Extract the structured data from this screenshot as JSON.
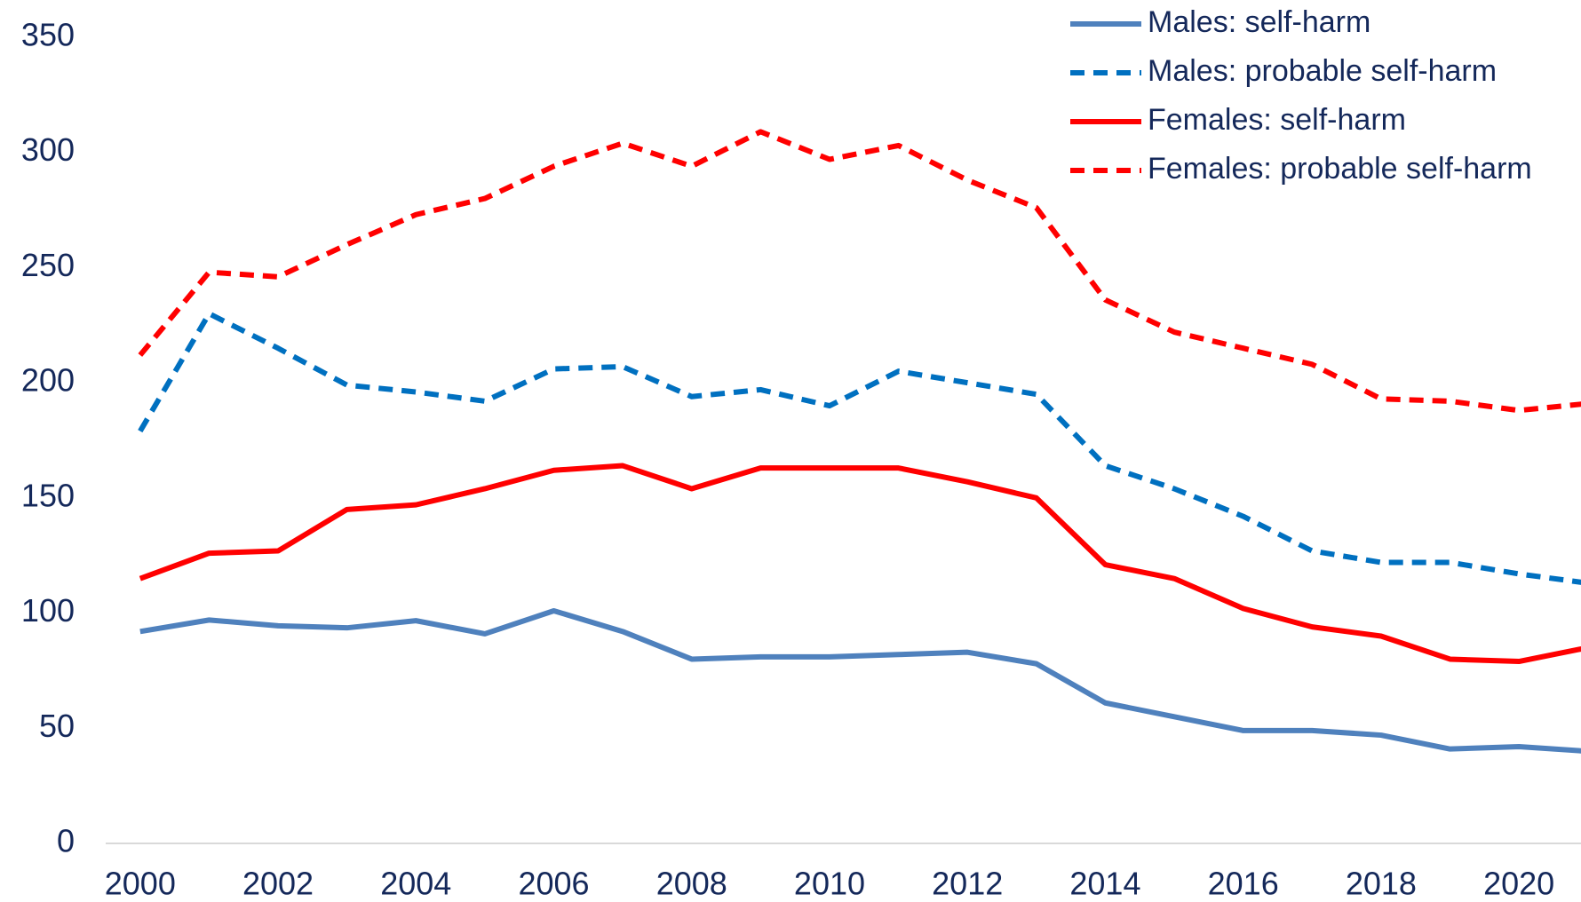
{
  "chart_data": {
    "type": "line",
    "x": [
      2000,
      2001,
      2002,
      2003,
      2004,
      2005,
      2006,
      2007,
      2008,
      2009,
      2010,
      2011,
      2012,
      2013,
      2014,
      2015,
      2016,
      2017,
      2018,
      2019,
      2020,
      2021
    ],
    "series": [
      {
        "name": "Males: self-harm",
        "color": "#4f81bd",
        "dashed": false,
        "values": [
          92,
          97,
          94.5,
          93.6,
          96.7,
          91,
          101,
          92,
          80,
          81,
          81,
          82,
          83,
          78,
          61,
          55,
          49,
          49,
          47,
          41,
          42,
          40
        ]
      },
      {
        "name": "Males: probable self-harm",
        "color": "#0070c0",
        "dashed": true,
        "values": [
          179,
          230,
          215,
          199,
          196,
          192,
          206,
          207,
          194,
          197,
          190,
          205,
          200,
          195,
          164,
          154,
          142,
          127,
          122,
          122,
          117,
          113
        ]
      },
      {
        "name": "Females: self-harm",
        "color": "#ff0000",
        "dashed": false,
        "values": [
          115,
          126,
          127,
          145,
          147,
          154,
          162,
          164,
          154,
          163,
          163,
          163,
          157,
          150,
          121,
          115,
          102,
          94,
          90,
          80,
          79,
          85
        ]
      },
      {
        "name": "Females: probable self-harm",
        "color": "#ff0000",
        "dashed": true,
        "values": [
          212,
          248,
          246,
          260,
          273,
          280,
          294,
          304,
          294,
          309,
          297,
          303,
          288,
          276,
          236,
          222,
          215,
          208,
          193,
          192,
          188,
          191
        ]
      }
    ],
    "xlim": [
      1999.5,
      2020.9
    ],
    "xticks": [
      2000,
      2002,
      2004,
      2006,
      2008,
      2010,
      2012,
      2014,
      2016,
      2018,
      2020
    ],
    "ylim": [
      0,
      350
    ],
    "yticks": [
      0,
      50,
      100,
      150,
      200,
      250,
      300,
      350
    ],
    "grid": false,
    "legend": "top-right"
  }
}
